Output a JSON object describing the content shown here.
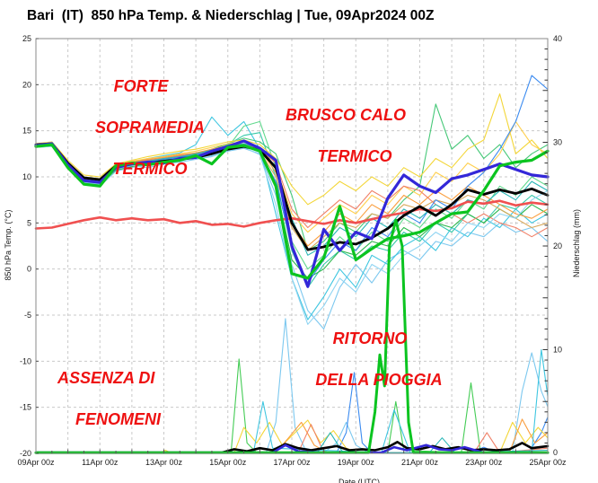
{
  "title": "Bari  (IT)  850 hPa Temp. & Niederschlag | Tue, 09Apr2024 00Z",
  "annotations": {
    "forte": {
      "line1": "FORTE",
      "line2": "SOPRAMEDIA",
      "line3": "TERMICO"
    },
    "brusco": {
      "line1": "BRUSCO CALO",
      "line2": "TERMICO"
    },
    "assenza": {
      "line1": "ASSENZA DI",
      "line2": "FENOMENI"
    },
    "ritorno": {
      "line1": "RITORNO",
      "line2": "DELLA PIOGGIA"
    }
  },
  "colors": {
    "annotation": "#ee1111",
    "grid": "#c9c9c9",
    "border": "#8a8a8a",
    "tick_text": "#1a1a1a",
    "ens_mean": "#000000",
    "det_green": "#0bc420",
    "oper_blue": "#3327d8",
    "climate_red": "#f05050"
  },
  "chart_data": {
    "type": "line",
    "title": "Bari (IT) 850 hPa Temp. & Niederschlag | Tue, 09Apr2024 00Z",
    "xlabel": "Date (UTC)",
    "ylabel_left": "850 hPa Temp. (°C)",
    "ylabel_right": "Niederschlag (mm)",
    "x_tick_labels": [
      "09Apr 00z",
      "11Apr 00z",
      "13Apr 00z",
      "15Apr 00z",
      "17Apr 00z",
      "19Apr 00z",
      "21Apr 00z",
      "23Apr 00z",
      "25Apr 00z"
    ],
    "x_tick_days": [
      0,
      2,
      4,
      6,
      8,
      10,
      12,
      14,
      16
    ],
    "x_range_days": [
      0,
      16
    ],
    "y_left_ticks": [
      25,
      20,
      15,
      10,
      5,
      0,
      -5,
      -10,
      -15,
      -20
    ],
    "y_left_range": [
      -20,
      25
    ],
    "y_right_ticks": [
      40,
      30,
      20,
      10,
      0
    ],
    "y_right_range": [
      0,
      40
    ],
    "grid": true,
    "legend": "none",
    "x_days": [
      0,
      0.5,
      1,
      1.5,
      2,
      2.5,
      3,
      3.5,
      4,
      4.5,
      5,
      5.5,
      6,
      6.5,
      7,
      7.5,
      8,
      8.5,
      9,
      9.5,
      10,
      10.5,
      11,
      11.5,
      12,
      12.5,
      13,
      13.5,
      14,
      14.5,
      15,
      15.5,
      16
    ],
    "temp_series": [
      {
        "name": "member-lightblue",
        "color": "#7cc8ef",
        "width": 1.1,
        "values": [
          13.2,
          13.4,
          11.0,
          9.4,
          9.2,
          10.8,
          11.2,
          11.0,
          11.4,
          11.6,
          11.9,
          12.2,
          12.8,
          13.1,
          12.5,
          8.0,
          0.5,
          -4.5,
          -6.5,
          -2.0,
          0.5,
          -1.5,
          1.0,
          2.0,
          1.0,
          3.0,
          2.5,
          4.0,
          3.5,
          5.0,
          4.0,
          4.5,
          3.0
        ]
      },
      {
        "name": "member-cyan",
        "color": "#3fc6e0",
        "width": 1.1,
        "values": [
          13.5,
          13.7,
          11.5,
          10.0,
          9.8,
          11.2,
          11.6,
          12.0,
          12.3,
          12.6,
          13.5,
          16.5,
          14.5,
          16.0,
          13.0,
          6.0,
          -1.0,
          -5.5,
          -3.0,
          0.0,
          -2.0,
          1.5,
          0.5,
          2.5,
          3.5,
          2.0,
          4.5,
          3.5,
          5.5,
          4.5,
          6.5,
          5.0,
          6.0
        ]
      },
      {
        "name": "member-turquoise",
        "color": "#35c9a8",
        "width": 1.1,
        "values": [
          13.3,
          13.4,
          11.3,
          9.6,
          9.4,
          11.0,
          11.5,
          11.7,
          12.0,
          12.2,
          12.4,
          12.8,
          13.5,
          14.5,
          14.8,
          10.0,
          2.0,
          -2.0,
          0.5,
          2.0,
          1.0,
          2.5,
          2.0,
          4.0,
          3.0,
          5.0,
          4.0,
          6.0,
          5.0,
          7.0,
          6.5,
          8.0,
          7.0
        ]
      },
      {
        "name": "member-mediumgreen",
        "color": "#46c878",
        "width": 1.1,
        "values": [
          13.4,
          13.6,
          11.4,
          9.8,
          9.6,
          11.1,
          11.5,
          11.8,
          12.0,
          12.3,
          12.5,
          13.0,
          13.6,
          14.2,
          13.8,
          12.5,
          8.0,
          2.0,
          3.0,
          5.0,
          4.0,
          6.0,
          5.5,
          7.5,
          9.0,
          17.9,
          13.0,
          14.5,
          12.0,
          13.5,
          11.0,
          12.5,
          13.5
        ]
      },
      {
        "name": "member-springgreen",
        "color": "#62d98e",
        "width": 1.1,
        "values": [
          13.3,
          13.5,
          11.2,
          9.5,
          9.3,
          10.9,
          11.3,
          11.6,
          11.8,
          12.1,
          12.3,
          12.7,
          13.2,
          15.5,
          16.0,
          11.0,
          3.0,
          0.0,
          1.5,
          3.5,
          2.0,
          4.0,
          3.0,
          5.5,
          4.5,
          6.5,
          5.5,
          7.5,
          6.5,
          9.0,
          8.0,
          10.0,
          9.0
        ]
      },
      {
        "name": "member-green",
        "color": "#2db84d",
        "width": 1.1,
        "values": [
          13.2,
          13.3,
          11.1,
          9.3,
          9.1,
          10.7,
          11.1,
          11.4,
          11.6,
          11.9,
          12.2,
          12.4,
          13.0,
          13.5,
          13.0,
          9.0,
          1.0,
          -1.0,
          0.0,
          2.0,
          1.5,
          3.0,
          2.5,
          4.5,
          3.5,
          5.0,
          4.5,
          6.0,
          5.0,
          6.5,
          5.5,
          7.0,
          6.0
        ]
      },
      {
        "name": "member-yellow",
        "color": "#f3d638",
        "width": 1.1,
        "values": [
          13.6,
          13.8,
          11.8,
          10.2,
          10.0,
          11.4,
          11.8,
          12.2,
          12.5,
          12.8,
          13.0,
          13.4,
          13.8,
          14.0,
          13.5,
          12.0,
          9.0,
          7.0,
          8.0,
          9.5,
          8.5,
          10.0,
          9.0,
          11.0,
          10.0,
          12.0,
          11.0,
          13.0,
          14.0,
          19.0,
          12.5,
          14.0,
          12.0
        ]
      },
      {
        "name": "member-gold",
        "color": "#ffcf4d",
        "width": 1.1,
        "values": [
          13.5,
          13.6,
          11.6,
          10.0,
          9.8,
          11.3,
          11.7,
          12.0,
          12.2,
          12.5,
          12.8,
          13.2,
          13.6,
          13.8,
          13.2,
          11.0,
          6.0,
          4.0,
          5.5,
          7.0,
          6.0,
          8.0,
          7.0,
          9.0,
          8.0,
          10.5,
          9.5,
          11.5,
          10.5,
          12.5,
          16.0,
          13.5,
          12.5
        ]
      },
      {
        "name": "member-orange",
        "color": "#fa9d3c",
        "width": 1.1,
        "values": [
          13.4,
          13.5,
          11.5,
          9.9,
          9.7,
          11.2,
          11.6,
          11.9,
          12.1,
          12.4,
          12.6,
          13.0,
          13.4,
          13.6,
          13.0,
          10.5,
          5.0,
          2.5,
          4.0,
          6.0,
          5.0,
          7.0,
          6.0,
          8.0,
          7.0,
          8.5,
          7.5,
          9.0,
          8.0,
          7.0,
          6.0,
          5.5,
          6.5
        ]
      },
      {
        "name": "member-tan",
        "color": "#d9a95c",
        "width": 1.1,
        "values": [
          13.3,
          13.4,
          11.4,
          9.7,
          9.5,
          11.0,
          11.4,
          11.7,
          11.9,
          12.2,
          12.4,
          12.8,
          13.2,
          13.4,
          12.8,
          10.0,
          4.5,
          2.0,
          3.5,
          5.0,
          4.5,
          6.0,
          5.5,
          7.0,
          6.5,
          7.5,
          7.0,
          8.0,
          7.5,
          6.5,
          5.5,
          4.5,
          5.0
        ]
      },
      {
        "name": "member-salmon",
        "color": "#f08068",
        "width": 1.1,
        "values": [
          13.4,
          13.6,
          11.5,
          9.8,
          9.6,
          11.1,
          11.5,
          11.8,
          12.0,
          12.3,
          12.5,
          12.9,
          13.3,
          13.5,
          13.0,
          11.5,
          6.5,
          4.5,
          6.0,
          7.5,
          6.5,
          8.5,
          7.5,
          9.0,
          8.5,
          7.0,
          6.0,
          5.0,
          6.0,
          5.0,
          4.5,
          3.5,
          4.5
        ]
      },
      {
        "name": "member-dodgerblue",
        "color": "#3b8bf0",
        "width": 1.1,
        "values": [
          13.3,
          13.5,
          11.3,
          9.6,
          9.4,
          11.0,
          11.4,
          11.6,
          11.9,
          12.1,
          12.4,
          12.7,
          13.1,
          13.3,
          12.7,
          9.5,
          2.5,
          -1.5,
          1.0,
          3.0,
          2.0,
          4.5,
          3.5,
          6.0,
          5.0,
          7.5,
          6.5,
          9.0,
          10.5,
          13.0,
          16.0,
          21.0,
          19.5
        ]
      },
      {
        "name": "member-paleblue",
        "color": "#8fd4f2",
        "width": 1.1,
        "values": [
          13.2,
          13.3,
          11.0,
          9.2,
          9.0,
          10.6,
          11.0,
          11.3,
          11.5,
          11.8,
          12.0,
          12.3,
          12.9,
          13.2,
          12.4,
          7.0,
          -1.0,
          -6.0,
          -4.0,
          -1.0,
          -2.5,
          0.5,
          -0.5,
          1.5,
          2.5,
          4.0,
          3.0,
          5.0,
          4.5,
          6.0,
          5.5,
          7.5,
          8.5
        ]
      },
      {
        "name": "member-teal",
        "color": "#2ab7b7",
        "width": 1.1,
        "values": [
          13.4,
          13.5,
          11.4,
          9.7,
          9.5,
          11.1,
          11.5,
          11.7,
          12.0,
          12.2,
          12.5,
          12.9,
          13.3,
          13.6,
          13.1,
          10.8,
          5.5,
          1.5,
          2.5,
          4.5,
          3.5,
          5.5,
          4.5,
          6.5,
          5.5,
          7.0,
          6.0,
          7.5,
          7.0,
          8.5,
          7.5,
          9.5,
          8.5
        ]
      },
      {
        "name": "climate-mean",
        "color": "#f05050",
        "width": 2.6,
        "values": [
          4.4,
          4.5,
          4.9,
          5.3,
          5.6,
          5.3,
          5.5,
          5.3,
          5.4,
          5.0,
          5.2,
          4.8,
          4.9,
          4.6,
          5.0,
          5.3,
          5.5,
          5.2,
          4.9,
          5.3,
          5.0,
          5.4,
          5.8,
          6.1,
          6.5,
          6.3,
          6.6,
          7.3,
          7.1,
          7.4,
          6.9,
          7.2,
          7.0
        ]
      },
      {
        "name": "ensemble-mean",
        "color": "#000000",
        "width": 2.8,
        "values": [
          13.5,
          13.6,
          11.5,
          9.9,
          9.7,
          11.2,
          11.4,
          11.5,
          11.7,
          11.9,
          12.1,
          12.5,
          13.0,
          13.3,
          12.9,
          11.0,
          5.0,
          2.1,
          2.4,
          2.9,
          2.7,
          3.4,
          4.4,
          5.8,
          6.8,
          5.8,
          7.0,
          8.6,
          8.1,
          8.6,
          8.2,
          8.7,
          8.0
        ]
      },
      {
        "name": "operational-blue",
        "color": "#3327d8",
        "width": 3.2,
        "values": [
          13.4,
          13.6,
          11.3,
          9.6,
          9.4,
          11.0,
          11.4,
          11.6,
          11.5,
          12.0,
          12.1,
          12.8,
          13.3,
          13.9,
          13.1,
          11.8,
          2.5,
          -1.9,
          4.3,
          2.0,
          4.0,
          3.3,
          7.7,
          10.2,
          9.0,
          8.3,
          9.8,
          10.2,
          10.8,
          11.4,
          10.8,
          10.2,
          10.0
        ]
      },
      {
        "name": "deterministic-green",
        "color": "#0bc420",
        "width": 3.2,
        "values": [
          13.3,
          13.5,
          11.0,
          9.2,
          9.0,
          11.2,
          11.5,
          11.3,
          11.6,
          11.8,
          12.3,
          11.4,
          13.2,
          13.4,
          12.8,
          9.0,
          -0.5,
          -1.0,
          1.2,
          6.8,
          1.0,
          2.2,
          3.3,
          3.6,
          4.0,
          5.0,
          6.0,
          6.2,
          8.5,
          11.2,
          11.6,
          11.8,
          12.8
        ]
      }
    ],
    "precip_series": [
      {
        "name": "precip-member-lightblue",
        "color": "#7cc8ef",
        "width": 1.1,
        "x": [
          0,
          7.2,
          7.5,
          7.8,
          8.1,
          8.4,
          9.0,
          9.4,
          9.7,
          10.0,
          10.4,
          14.9,
          15.2,
          15.5,
          15.8,
          16
        ],
        "values": [
          0,
          0,
          3,
          13,
          2.5,
          0.5,
          0,
          1,
          3,
          0.8,
          0,
          0,
          6,
          9.7,
          6,
          4.5
        ]
      },
      {
        "name": "precip-member-dodgerblue",
        "color": "#3b8bf0",
        "width": 1.1,
        "x": [
          0,
          9.4,
          9.7,
          9.95,
          10.2,
          10.5,
          13.6,
          14.0,
          14.4,
          15.4,
          15.8,
          16
        ],
        "values": [
          0,
          0,
          2,
          7.8,
          1,
          0,
          0,
          0.6,
          0,
          0,
          2,
          3.5
        ]
      },
      {
        "name": "precip-member-green",
        "color": "#44cc55",
        "width": 1.1,
        "x": [
          0,
          6.1,
          6.35,
          6.6,
          6.9,
          11.0,
          11.25,
          11.5,
          13.3,
          13.6,
          13.9,
          16
        ],
        "values": [
          0,
          0,
          9.1,
          1,
          0,
          0,
          5,
          0.3,
          0,
          6.8,
          0,
          0
        ]
      },
      {
        "name": "precip-member-yellow",
        "color": "#f3d638",
        "width": 1.1,
        "x": [
          0,
          3.9,
          4.05,
          4.2,
          6.2,
          6.5,
          6.9,
          7.3,
          7.7,
          8.1,
          8.5,
          8.9,
          9.3,
          9.7,
          10.1,
          14.5,
          14.9,
          15.3,
          15.7,
          16
        ],
        "values": [
          0,
          0,
          0.3,
          0,
          0,
          2.5,
          1,
          3,
          0.8,
          2,
          3.2,
          1,
          2.2,
          0.5,
          0,
          0,
          3,
          1,
          2.5,
          1.5
        ]
      },
      {
        "name": "precip-member-orange",
        "color": "#fa9d3c",
        "width": 1.1,
        "x": [
          0,
          7.5,
          7.9,
          8.3,
          8.7,
          9.1,
          14.8,
          15.2,
          15.6,
          16
        ],
        "values": [
          0,
          0,
          1.5,
          3,
          0.8,
          0,
          0,
          3.3,
          1,
          2
        ]
      },
      {
        "name": "precip-member-salmon",
        "color": "#f08068",
        "width": 1.1,
        "x": [
          0,
          8.2,
          8.6,
          9.0,
          13.7,
          14.1,
          14.5,
          16
        ],
        "values": [
          0,
          0,
          2.8,
          0,
          0,
          2,
          0,
          0.5
        ]
      },
      {
        "name": "precip-member-cyan",
        "color": "#3fc6e0",
        "width": 1.1,
        "x": [
          0,
          6.8,
          7.1,
          7.4,
          10.8,
          11.2,
          11.7,
          15.5,
          15.8,
          16
        ],
        "values": [
          0,
          0,
          5,
          0.5,
          0,
          4.2,
          0,
          0,
          10,
          5.5
        ]
      },
      {
        "name": "precip-member-teal",
        "color": "#2ab7b7",
        "width": 1.1,
        "x": [
          0,
          8.8,
          9.2,
          9.6,
          12.3,
          12.7,
          13.1,
          16
        ],
        "values": [
          0,
          0,
          2,
          0,
          0,
          1.5,
          0,
          0.3
        ]
      },
      {
        "name": "precip-ensemble-mean",
        "color": "#000000",
        "width": 2.6,
        "x": [
          0,
          5.8,
          6.2,
          6.6,
          7.0,
          7.4,
          7.8,
          8.2,
          8.6,
          9.0,
          9.4,
          9.8,
          10.2,
          10.6,
          11.0,
          11.3,
          11.6,
          12.0,
          12.4,
          12.8,
          13.2,
          13.6,
          14.0,
          14.4,
          14.8,
          15.2,
          15.5,
          16
        ],
        "values": [
          0,
          0,
          0.4,
          0.2,
          0.5,
          0.3,
          0.9,
          0.5,
          0.3,
          0.5,
          0.7,
          0.3,
          0.4,
          0.3,
          0.6,
          1.1,
          0.5,
          0.4,
          0.7,
          0.4,
          0.6,
          0.3,
          0.4,
          0.3,
          0.4,
          1.0,
          0.5,
          0.7
        ]
      },
      {
        "name": "precip-operational-blue",
        "color": "#3327d8",
        "width": 2.6,
        "x": [
          0,
          7.4,
          7.8,
          8.2,
          9.0,
          10.8,
          11.2,
          11.6,
          12.2,
          12.6,
          13.0,
          13.4,
          14.0,
          16
        ],
        "values": [
          0,
          0,
          0.8,
          0.2,
          0,
          0,
          0.6,
          0.3,
          0.8,
          0.4,
          0.3,
          0.6,
          0,
          0
        ]
      },
      {
        "name": "precip-deterministic-green",
        "color": "#0bc420",
        "width": 3.0,
        "x": [
          0,
          10.4,
          10.6,
          10.75,
          10.9,
          11.05,
          11.25,
          11.45,
          11.65,
          11.8,
          16
        ],
        "values": [
          0,
          0,
          4,
          9.5,
          6.5,
          20,
          22.5,
          20,
          3,
          0,
          0
        ]
      }
    ]
  }
}
